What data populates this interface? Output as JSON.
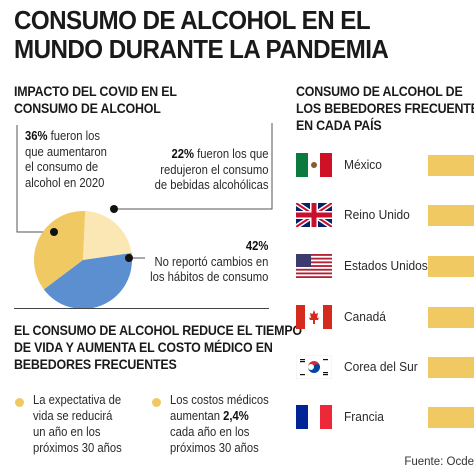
{
  "title": [
    "CONSUMO DE ALCOHOL EN EL",
    "MUNDO DURANTE LA PANDEMIA"
  ],
  "impact_section": {
    "title": [
      "IMPACTO DEL COVID EN EL",
      "CONSUMO DE ALCOHOL"
    ],
    "note_increase": {
      "pct": "36%",
      "lines": [
        " fueron los",
        "que aumentaron",
        "el consumo de",
        "alcohol en 2020"
      ]
    },
    "note_decrease": {
      "pct": "22%",
      "lines": [
        " fueron los que",
        "redujeron el consumo",
        "de bebidas alcohólicas"
      ]
    },
    "note_nochange": {
      "pct": "42%",
      "lines": [
        "No reportó cambios en",
        "los hábitos de consumo"
      ]
    }
  },
  "chart_data": [
    {
      "type": "pie",
      "categories": [
        "Aumentaron",
        "Redujeron",
        "No reportó cambios"
      ],
      "values": [
        36,
        22,
        42
      ],
      "colors": [
        "#f1c962",
        "#fbe7b4",
        "#5b8fd0"
      ]
    },
    {
      "type": "bar",
      "title": [
        "CONSUMO DE ALCOHOL DE",
        "LOS BEBEDORES FRECUENTES",
        "EN CADA PAÍS"
      ],
      "categories": [
        "México",
        "Reino Unido",
        "Estados Unidos",
        "Canadá",
        "Corea del Sur",
        "Francia"
      ],
      "flags": [
        "mexico-flag",
        "uk-flag",
        "usa-flag",
        "canada-flag",
        "south-korea-flag",
        "france-flag"
      ],
      "bar_color": "#f1c962"
    }
  ],
  "life_section": {
    "title": [
      "EL CONSUMO DE ALCOHOL REDUCE EL TIEMPO",
      "DE VIDA Y AUMENTA EL COSTO MÉDICO EN",
      "BEBEDORES FRECUENTES"
    ],
    "point1": [
      "La expectativa de",
      "vida se reducirá",
      "un año en los",
      "próximos 30 años"
    ],
    "point2": {
      "line1": "Los costos médicos",
      "line2_pre": "aumentan ",
      "line2_bold": "2,4%",
      "line3": "cada año en los",
      "line4": "próximos 30 años"
    }
  },
  "source": "Fuente: Ocde"
}
